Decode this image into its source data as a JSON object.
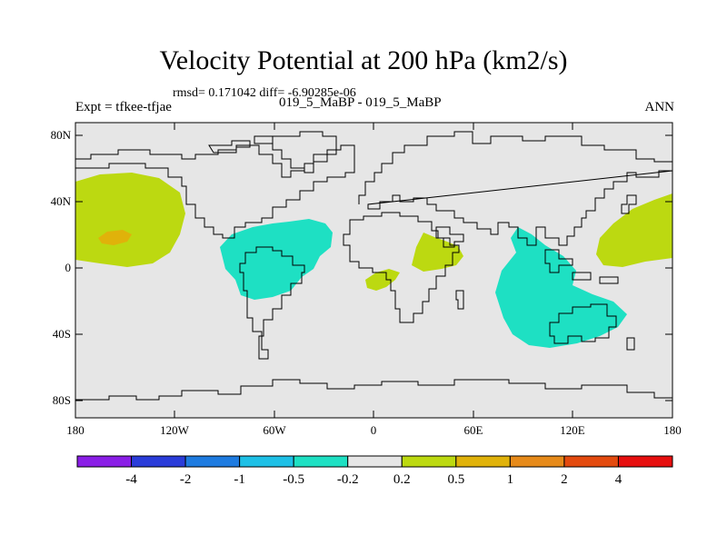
{
  "title": "Velocity Potential at 200 hPa (km2/s)",
  "stats_line": "rmsd= 0.171042 diff= -6.90285e-06",
  "experiment": "Expt = tfkee-tfjae",
  "case_label": "019_5_MaBP - 019_5_MaBP",
  "season": "ANN",
  "map": {
    "projection": "cylindrical-equidistant",
    "lon_range": [
      -180,
      180
    ],
    "lat_range": [
      -90,
      90
    ],
    "background_color": "#e6e6e6",
    "coastline_color": "#000000",
    "y_ticks": [
      {
        "lat": 80,
        "label": "80N"
      },
      {
        "lat": 40,
        "label": "40N"
      },
      {
        "lat": 0,
        "label": "0"
      },
      {
        "lat": -40,
        "label": "40S"
      },
      {
        "lat": -80,
        "label": "80S"
      }
    ],
    "x_ticks": [
      {
        "lon": -180,
        "label": "180"
      },
      {
        "lon": -120,
        "label": "120W"
      },
      {
        "lon": -60,
        "label": "60W"
      },
      {
        "lon": 0,
        "label": "0"
      },
      {
        "lon": 60,
        "label": "60E"
      },
      {
        "lon": 120,
        "label": "120E"
      },
      {
        "lon": 180,
        "label": "180"
      }
    ]
  },
  "colorbar": {
    "colors": [
      "#8a1ee6",
      "#2a3cd9",
      "#1e7be0",
      "#1ec0e6",
      "#1ee0c3",
      "#e6e6e6",
      "#bcd911",
      "#e0b20a",
      "#e68a1a",
      "#e34a0f",
      "#e60f0f"
    ],
    "labels": [
      "-4",
      "-2",
      "-1",
      "-0.5",
      "-0.2",
      "0.2",
      "0.5",
      "1",
      "2",
      "4"
    ]
  },
  "regions": [
    {
      "name": "central-pacific-positive",
      "level": "0.2 to 0.5",
      "color": "#bcd911"
    },
    {
      "name": "central-pacific-positive-core",
      "level": "0.5 to 1",
      "color": "#e0b20a"
    },
    {
      "name": "south-america-negative",
      "level": "-0.5 to -0.2",
      "color": "#1ee0c3"
    },
    {
      "name": "gulf-of-guinea-positive",
      "level": "0.2 to 0.5",
      "color": "#bcd911"
    },
    {
      "name": "east-africa-positive",
      "level": "0.2 to 0.5",
      "color": "#bcd911"
    },
    {
      "name": "indian-ocean-australia-negative",
      "level": "-0.5 to -0.2",
      "color": "#1ee0c3"
    },
    {
      "name": "west-pacific-positive",
      "level": "0.2 to 0.5",
      "color": "#bcd911"
    }
  ]
}
